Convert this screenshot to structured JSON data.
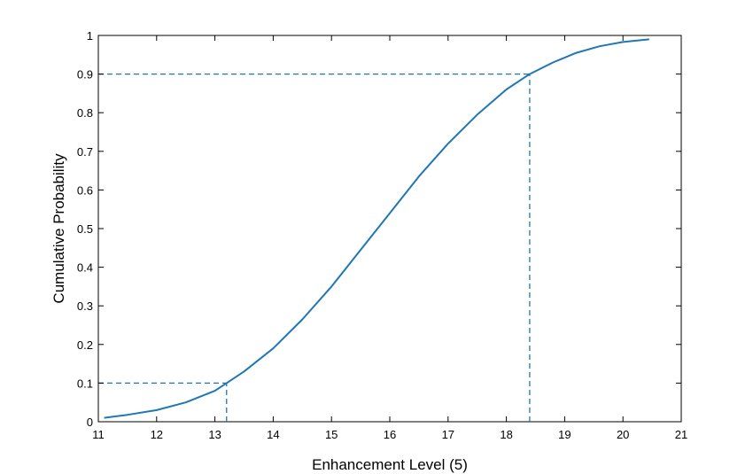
{
  "chart_data": {
    "type": "line",
    "title": "",
    "xlabel": "Enhancement Level (5)",
    "ylabel": "Cumulative Probability",
    "xlim": [
      11,
      21
    ],
    "ylim": [
      0,
      1
    ],
    "xticks": [
      "11",
      "12",
      "13",
      "14",
      "15",
      "16",
      "17",
      "18",
      "19",
      "20",
      "21"
    ],
    "yticks": [
      "0",
      "0.1",
      "0.2",
      "0.3",
      "0.4",
      "0.5",
      "0.6",
      "0.7",
      "0.8",
      "0.9",
      "1"
    ],
    "grid": false,
    "line_color": "#1f77b4",
    "series": [
      {
        "x": [
          11.1,
          11.5,
          12.0,
          12.5,
          13.0,
          13.2,
          13.5,
          14.0,
          14.5,
          15.0,
          15.5,
          16.0,
          16.5,
          17.0,
          17.5,
          18.0,
          18.4,
          18.8,
          19.2,
          19.6,
          20.0,
          20.45
        ],
        "values": [
          0.01,
          0.018,
          0.03,
          0.05,
          0.08,
          0.1,
          0.13,
          0.19,
          0.265,
          0.35,
          0.445,
          0.54,
          0.635,
          0.72,
          0.795,
          0.86,
          0.9,
          0.93,
          0.955,
          0.972,
          0.983,
          0.99
        ]
      }
    ],
    "reference_lines": [
      {
        "type": "hline",
        "y": 0.1,
        "x_from": 11,
        "x_to": 13.2
      },
      {
        "type": "vline",
        "x": 13.2,
        "y_from": 0,
        "y_to": 0.1
      },
      {
        "type": "hline",
        "y": 0.9,
        "x_from": 11,
        "x_to": 18.4
      },
      {
        "type": "vline",
        "x": 18.4,
        "y_from": 0,
        "y_to": 0.9
      }
    ]
  }
}
